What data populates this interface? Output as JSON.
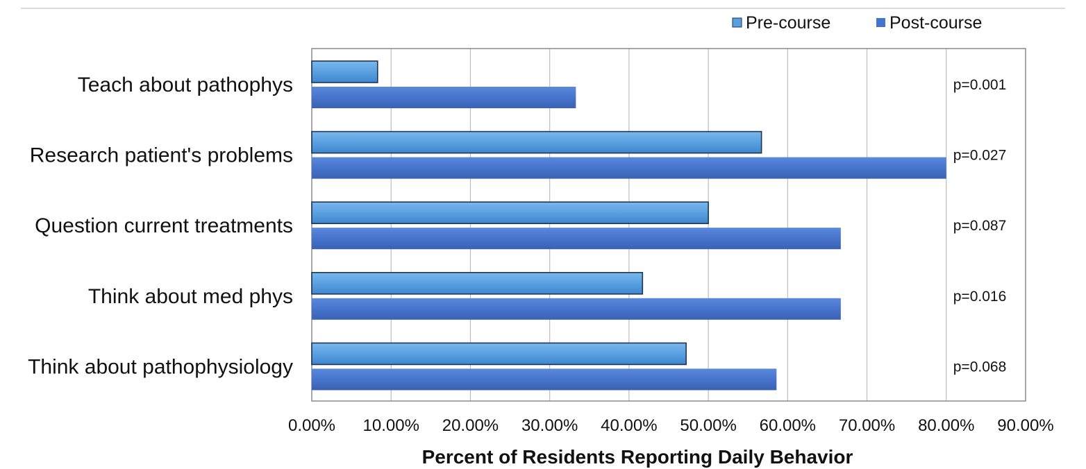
{
  "chart_data": {
    "type": "bar",
    "orientation": "horizontal",
    "title": "",
    "xlabel": "Percent of Residents Reporting Daily Behavior",
    "ylabel": "",
    "xlim": [
      0,
      90
    ],
    "ticks": [
      "0.00%",
      "10.00%",
      "20.00%",
      "30.00%",
      "40.00%",
      "50.00%",
      "60.00%",
      "70.00%",
      "80.00%",
      "90.00%"
    ],
    "grid": true,
    "legend_position": "top-right",
    "categories": [
      "Teach about pathophys",
      "Research patient's problems",
      "Question current treatments",
      "Think about med phys",
      "Think about pathophysiology"
    ],
    "series": [
      {
        "name": "Pre-course",
        "color": "#5aa0e0",
        "values": [
          8.3,
          56.7,
          50.0,
          41.7,
          47.2
        ]
      },
      {
        "name": "Post-course",
        "color": "#4674cc",
        "values": [
          33.3,
          80.0,
          66.7,
          66.7,
          58.6
        ]
      }
    ],
    "annotations": [
      "p=0.001",
      "p=0.027",
      "p=0.087",
      "p=0.016",
      "p=0.068"
    ]
  }
}
